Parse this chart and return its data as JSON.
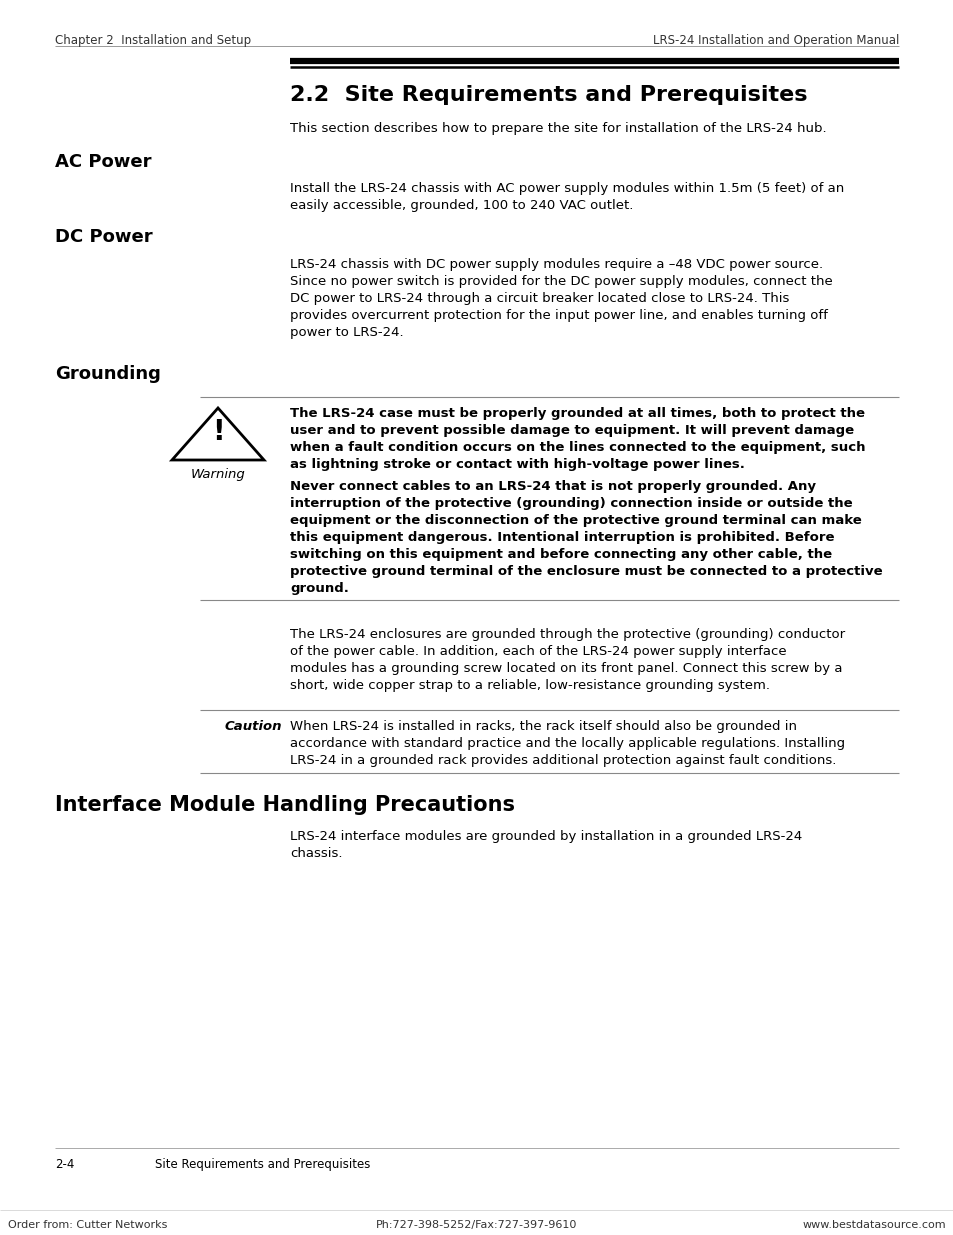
{
  "bg_color": "#ffffff",
  "header_left": "Chapter 2  Installation and Setup",
  "header_right": "LRS-24 Installation and Operation Manual",
  "footer_left": "Order from: Cutter Networks",
  "footer_center": "Ph:727-398-5252/Fax:727-397-9610",
  "footer_right": "www.bestdatasource.com",
  "page_label": "2-4",
  "page_label2": "Site Requirements and Prerequisites",
  "section_title": "2.2  Site Requirements and Prerequisites",
  "intro_text": "This section describes how to prepare the site for installation of the LRS-24 hub.",
  "ac_power_heading": "AC Power",
  "ac_power_line1": "Install the LRS-24 chassis with AC power supply modules within 1.5m (5 feet) of an",
  "ac_power_line2": "easily accessible, grounded, 100 to 240 VAC outlet.",
  "dc_power_heading": "DC Power",
  "dc_power_line1": "LRS-24 chassis with DC power supply modules require a –48 VDC power source.",
  "dc_power_line2": "Since no power switch is provided for the DC power supply modules, connect the",
  "dc_power_line3": "DC power to LRS-24 through a circuit breaker located close to LRS-24. This",
  "dc_power_line4": "provides overcurrent protection for the input power line, and enables turning off",
  "dc_power_line5": "power to LRS-24.",
  "grounding_heading": "Grounding",
  "warning_label": "Warning",
  "warn1_line1": "The LRS-24 case must be properly grounded at all times, both to protect the",
  "warn1_line2": "user and to prevent possible damage to equipment. It will prevent damage",
  "warn1_line3": "when a fault condition occurs on the lines connected to the equipment, such",
  "warn1_line4": "as lightning stroke or contact with high-voltage power lines.",
  "warn2_line1": "Never connect cables to an LRS-24 that is not properly grounded. Any",
  "warn2_line2": "interruption of the protective (grounding) connection inside or outside the",
  "warn2_line3": "equipment or the disconnection of the protective ground terminal can make",
  "warn2_line4": "this equipment dangerous. Intentional interruption is prohibited. Before",
  "warn2_line5": "switching on this equipment and before connecting any other cable, the",
  "warn2_line6": "protective ground terminal of the enclosure must be connected to a protective",
  "warn2_line7": "ground.",
  "ground_line1": "The LRS-24 enclosures are grounded through the protective (grounding) conductor",
  "ground_line2": "of the power cable. In addition, each of the LRS-24 power supply interface",
  "ground_line3": "modules has a grounding screw located on its front panel. Connect this screw by a",
  "ground_line4": "short, wide copper strap to a reliable, low-resistance grounding system.",
  "caution_label": "Caution",
  "caution_line1": "When LRS-24 is installed in racks, the rack itself should also be grounded in",
  "caution_line2": "accordance with standard practice and the locally applicable regulations. Installing",
  "caution_line3": "LRS-24 in a grounded rack provides additional protection against fault conditions.",
  "interface_heading": "Interface Module Handling Precautions",
  "iface_line1": "LRS-24 interface modules are grounded by installation in a grounded LRS-24",
  "iface_line2": "chassis.",
  "lm": 55,
  "cm": 290,
  "rm": 899,
  "wbl": 200
}
